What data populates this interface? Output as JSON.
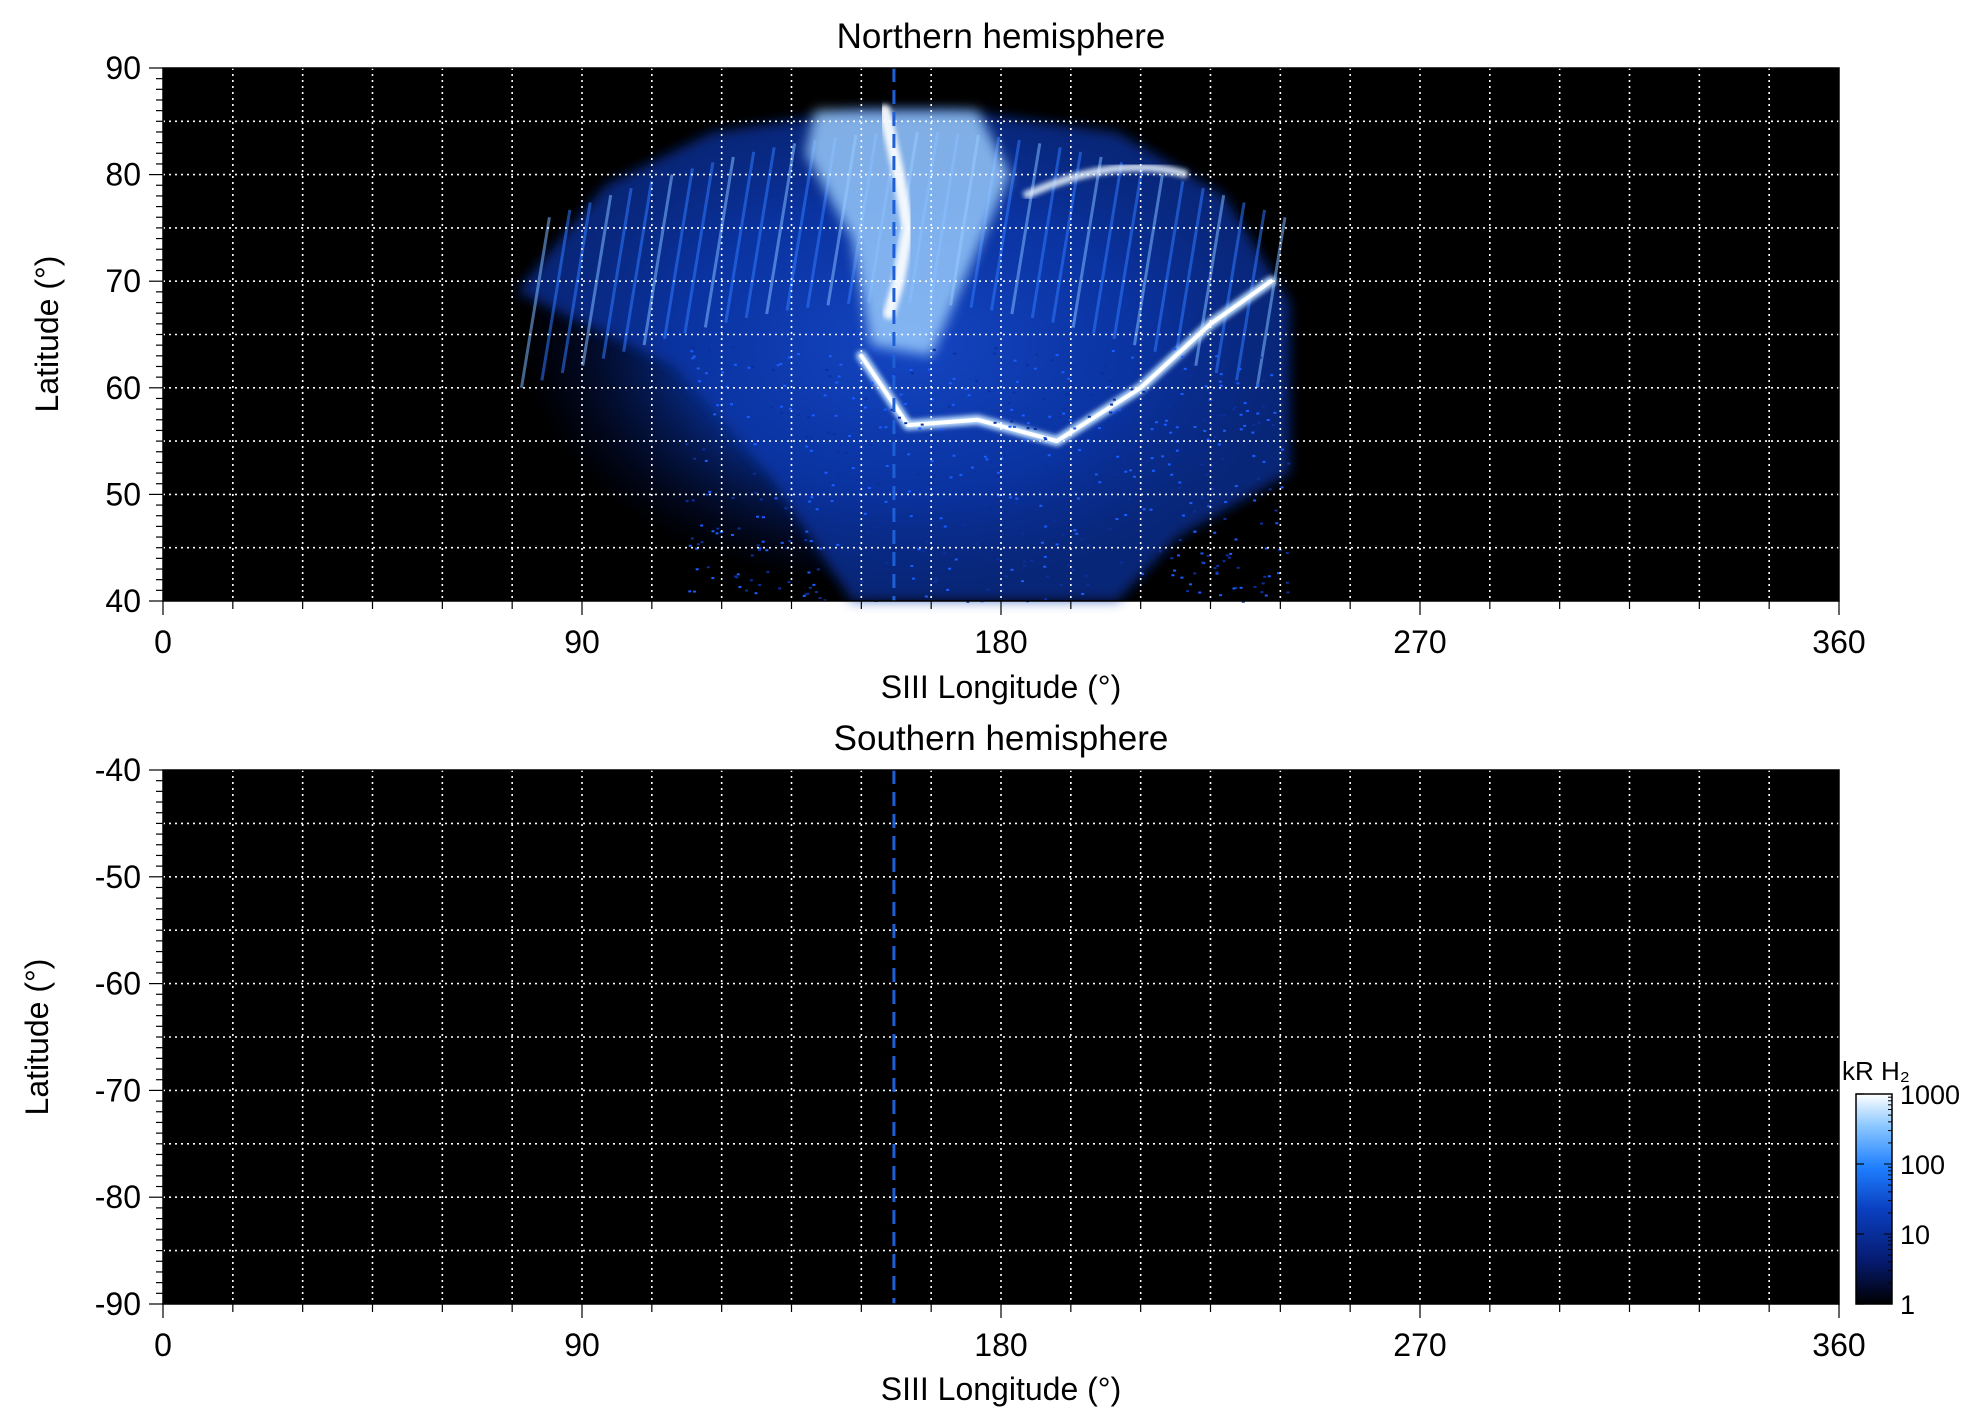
{
  "colors": {
    "background": "#000000",
    "grid": "#ffffff",
    "marker_line": "#1f5fd6",
    "colormap": [
      "#000000",
      "#061a6e",
      "#0a3fc0",
      "#1e7fff",
      "#8cc8ff",
      "#ffffff"
    ]
  },
  "chart_data": [
    {
      "type": "heatmap",
      "title": "Northern hemisphere",
      "xlabel": "SIII Longitude (°)",
      "ylabel": "Latitude (°)",
      "xlim": [
        0,
        360
      ],
      "ylim": [
        40,
        90
      ],
      "xticks": [
        0,
        90,
        180,
        270,
        360
      ],
      "yticks": [
        40,
        50,
        60,
        70,
        80,
        90
      ],
      "grid": true,
      "x_grid_step": 15,
      "y_grid_step": 5,
      "marker_longitude": 157,
      "emission_region": {
        "longitude_range": [
          76,
          242
        ],
        "latitude_range": [
          40,
          86
        ],
        "main_oval": [
          [
            150,
            63
          ],
          [
            160,
            56.5
          ],
          [
            175,
            57
          ],
          [
            192,
            55
          ],
          [
            210,
            60
          ],
          [
            225,
            66
          ],
          [
            238,
            70
          ]
        ],
        "bright_core": [
          [
            155,
            86
          ],
          [
            158,
            80
          ],
          [
            160,
            75
          ],
          [
            158,
            70
          ],
          [
            156,
            67
          ]
        ],
        "peak_kR": 1000
      }
    },
    {
      "type": "heatmap",
      "title": "Southern hemisphere",
      "xlabel": "SIII Longitude (°)",
      "ylabel": "Latitude (°)",
      "xlim": [
        0,
        360
      ],
      "ylim": [
        -90,
        -40
      ],
      "xticks": [
        0,
        90,
        180,
        270,
        360
      ],
      "yticks": [
        -40,
        -50,
        -60,
        -70,
        -80,
        -90
      ],
      "grid": true,
      "x_grid_step": 15,
      "y_grid_step": 5,
      "marker_longitude": 157
    }
  ],
  "colorbar": {
    "label": "kR H₂",
    "scale": "log",
    "range": [
      1,
      1000
    ],
    "ticks": [
      "1",
      "10",
      "100",
      "1000"
    ]
  }
}
